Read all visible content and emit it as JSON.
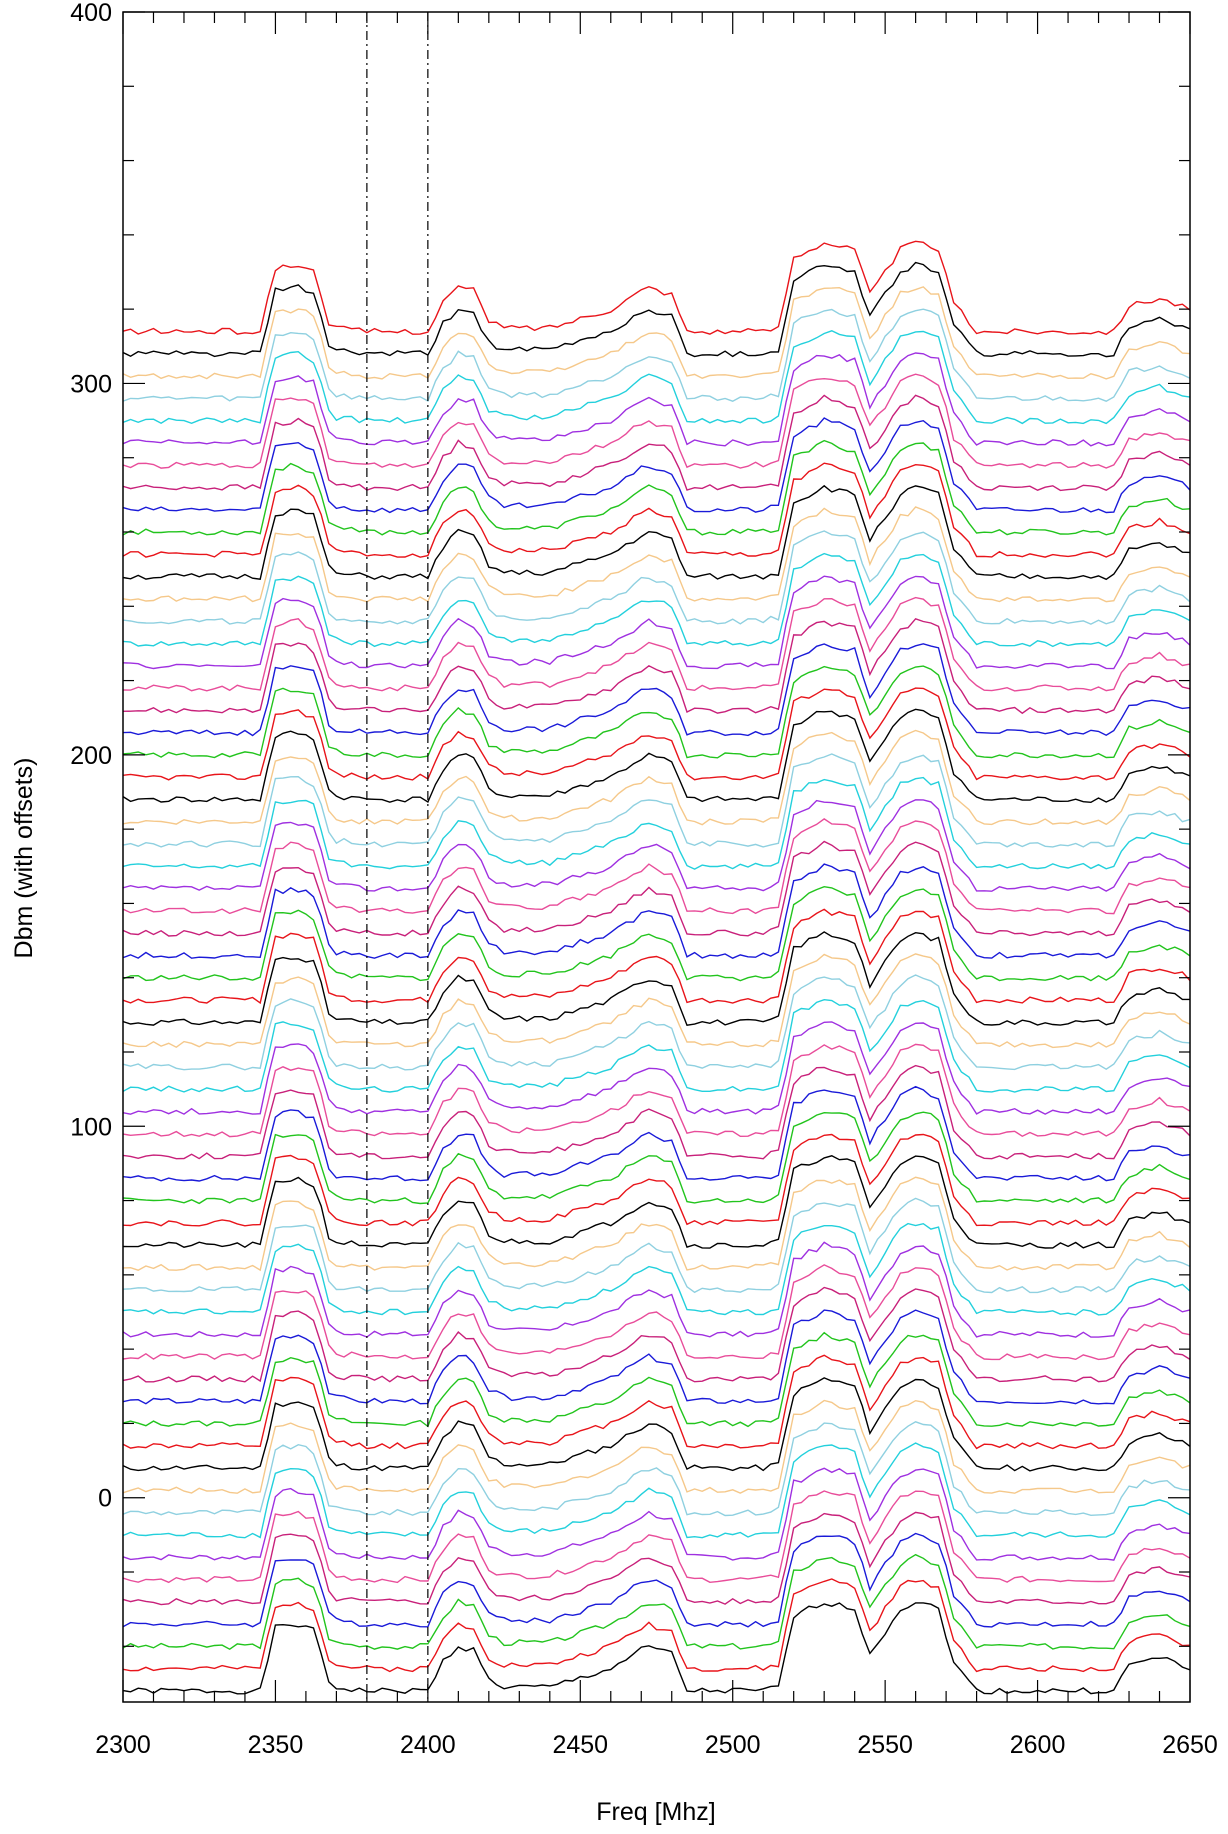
{
  "chart_data": {
    "type": "line",
    "title": "",
    "xlabel": "Freq [Mhz]",
    "ylabel": "Dbm (with offsets)",
    "xlim": [
      2300,
      2650
    ],
    "ylim": [
      -55,
      400
    ],
    "x_ticks": [
      2300,
      2350,
      2400,
      2450,
      2500,
      2550,
      2600,
      2650
    ],
    "y_ticks": [
      0,
      100,
      200,
      300,
      400
    ],
    "x_minor_step": 10,
    "y_minor_step": 20,
    "vertical_markers": [
      2380,
      2400
    ],
    "series_count": 62,
    "baseline_start": -52,
    "offset_step": 6,
    "color_cycle": [
      "#000000",
      "#e8141a",
      "#22c41d",
      "#1a1ad8",
      "#c8207a",
      "#e84d9a",
      "#9f30e0",
      "#23d0dc",
      "#8fd0e0",
      "#f5c88a"
    ],
    "profile_x": [
      2300,
      2310,
      2320,
      2330,
      2340,
      2345,
      2350,
      2357,
      2363,
      2368,
      2380,
      2400,
      2405,
      2410,
      2415,
      2420,
      2425,
      2440,
      2460,
      2472,
      2480,
      2485,
      2510,
      2515,
      2520,
      2530,
      2540,
      2545,
      2550,
      2555,
      2560,
      2568,
      2572,
      2580,
      2625,
      2630,
      2640,
      2650
    ],
    "profile_y": [
      0,
      0,
      0,
      0,
      0,
      0,
      17,
      18,
      16,
      1,
      0,
      0,
      8,
      12,
      11,
      3,
      1,
      1,
      6,
      12,
      10,
      0,
      0,
      1,
      20,
      24,
      22,
      10,
      16,
      22,
      24,
      22,
      8,
      0,
      0,
      7,
      9,
      6
    ]
  }
}
